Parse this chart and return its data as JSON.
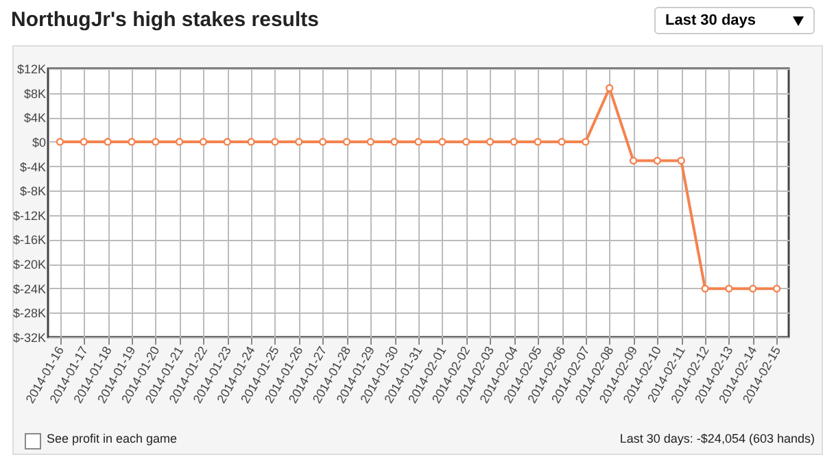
{
  "chart_data": {
    "type": "line",
    "title": "NorthugJr's high stakes results",
    "annotations": [
      "Last 30 days",
      "See profit in each game",
      "Last 30 days: -$24,054 (603 hands)"
    ],
    "categories": [
      "2014-01-16",
      "2014-01-17",
      "2014-01-18",
      "2014-01-19",
      "2014-01-20",
      "2014-01-21",
      "2014-01-22",
      "2014-01-23",
      "2014-01-24",
      "2014-01-25",
      "2014-01-26",
      "2014-01-27",
      "2014-01-28",
      "2014-01-29",
      "2014-01-30",
      "2014-01-31",
      "2014-02-01",
      "2014-02-02",
      "2014-02-03",
      "2014-02-04",
      "2014-02-05",
      "2014-02-06",
      "2014-02-07",
      "2014-02-08",
      "2014-02-09",
      "2014-02-10",
      "2014-02-11",
      "2014-02-12",
      "2014-02-13",
      "2014-02-14",
      "2014-02-15"
    ],
    "series": [
      {
        "color": "#f4834f",
        "values": [
          0,
          0,
          0,
          0,
          0,
          0,
          0,
          0,
          0,
          0,
          0,
          0,
          0,
          0,
          0,
          0,
          0,
          0,
          0,
          0,
          0,
          0,
          0,
          8800,
          -3100,
          -3100,
          -3100,
          -24054,
          -24054,
          -24054,
          -24054
        ]
      }
    ],
    "ylim": [
      -32000,
      12000
    ],
    "yticks": [
      {
        "value": 12000,
        "label": "$12K"
      },
      {
        "value": 8000,
        "label": "$8K"
      },
      {
        "value": 4000,
        "label": "$4K"
      },
      {
        "value": 0,
        "label": "$0"
      },
      {
        "value": -4000,
        "label": "$-4K"
      },
      {
        "value": -8000,
        "label": "$-8K"
      },
      {
        "value": -12000,
        "label": "$-12K"
      },
      {
        "value": -16000,
        "label": "$-16K"
      },
      {
        "value": -20000,
        "label": "$-20K"
      },
      {
        "value": -24000,
        "label": "$-24K"
      },
      {
        "value": -28000,
        "label": "$-28K"
      },
      {
        "value": -32000,
        "label": "$-32K"
      }
    ],
    "grid": true,
    "marker": "circle",
    "line_style": "solid",
    "legend": false
  }
}
